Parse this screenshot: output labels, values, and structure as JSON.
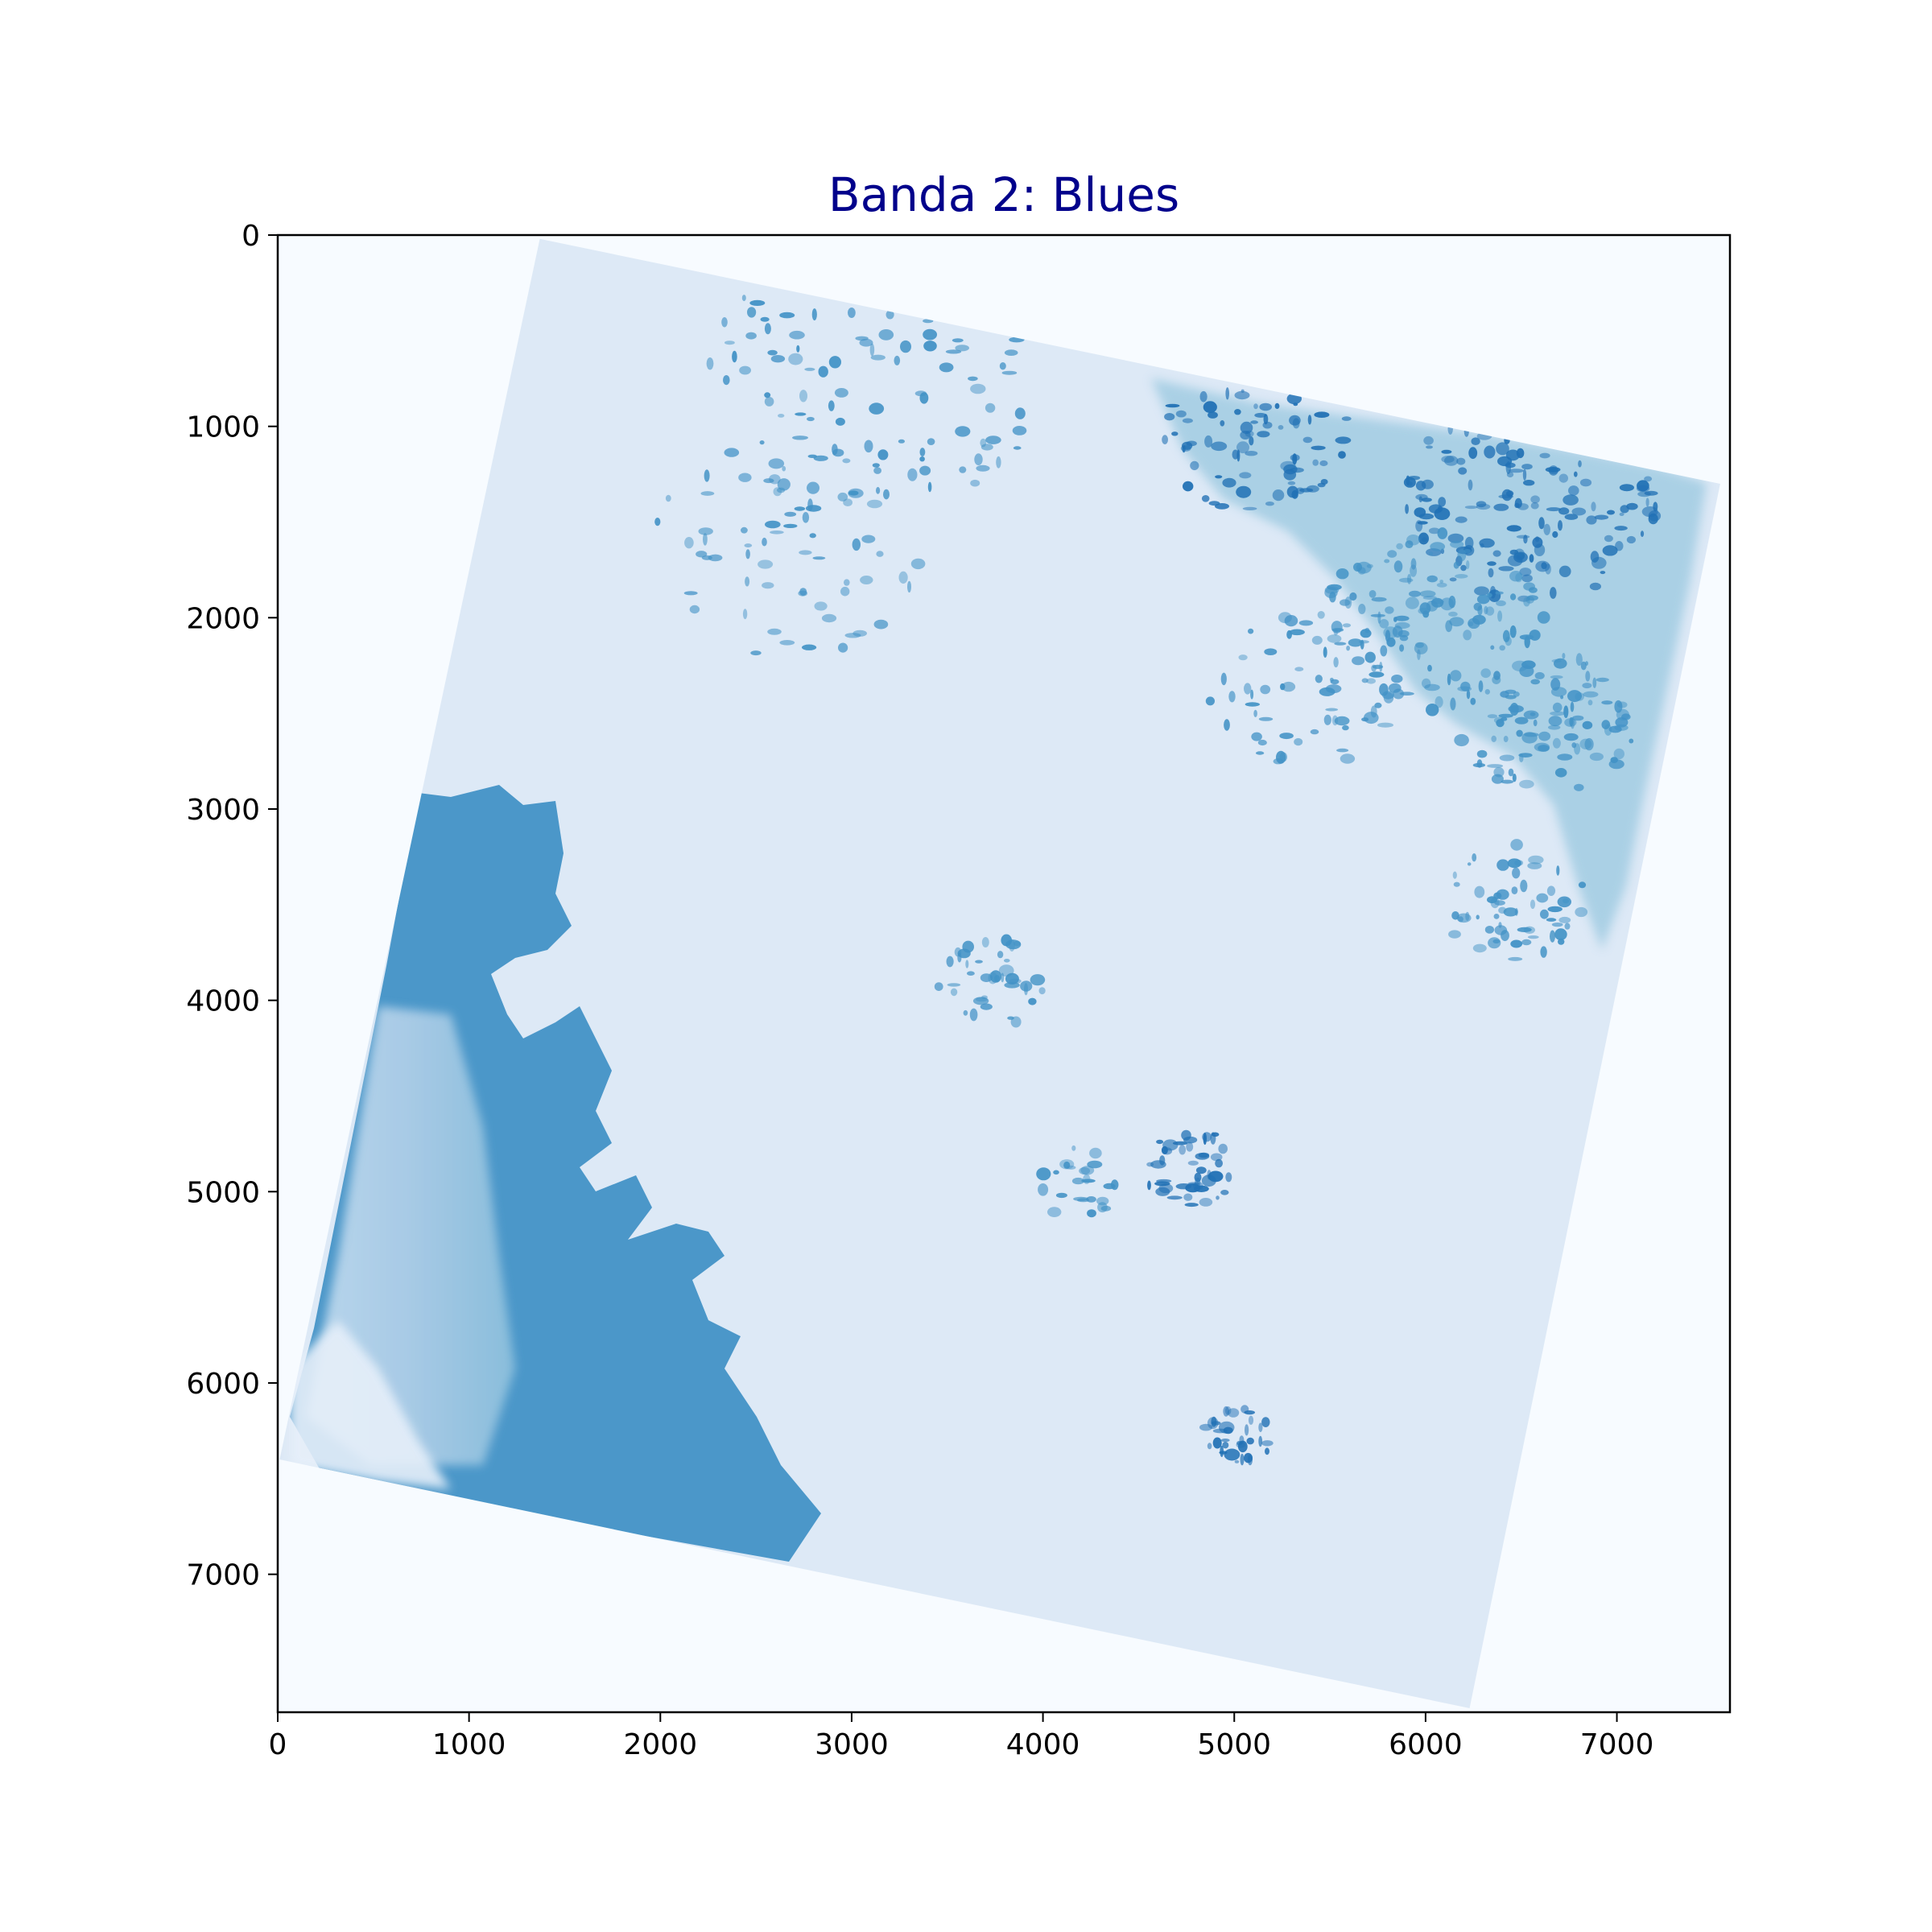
{
  "chart_data": {
    "type": "heatmap",
    "title": "Banda 2: Blues",
    "colormap": "Blues",
    "colors": {
      "title": "#00008b",
      "nodata": "#f7fbff",
      "scene_light": "#dde9f6",
      "scene_mid": "#9ecae1",
      "scene_dark": "#4292c6",
      "scene_darkest": "#2171b5"
    },
    "xlim": [
      0,
      7591
    ],
    "ylim": [
      7721,
      0
    ],
    "x_ticks": [
      0,
      1000,
      2000,
      3000,
      4000,
      5000,
      6000,
      7000
    ],
    "y_ticks": [
      0,
      1000,
      2000,
      3000,
      4000,
      5000,
      6000,
      7000
    ],
    "x_tick_labels": [
      "0",
      "1000",
      "2000",
      "3000",
      "4000",
      "5000",
      "6000",
      "7000"
    ],
    "y_tick_labels": [
      "0",
      "1000",
      "2000",
      "3000",
      "4000",
      "5000",
      "6000",
      "7000"
    ],
    "scene_corners": [
      [
        1370,
        20
      ],
      [
        7540,
        1300
      ],
      [
        6230,
        7700
      ],
      [
        10,
        6400
      ]
    ],
    "grid": false
  }
}
